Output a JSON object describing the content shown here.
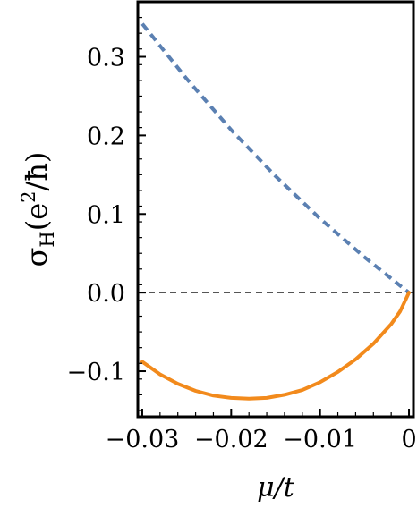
{
  "chart_data": {
    "type": "line",
    "title": "",
    "xlabel": "μ/t",
    "ylabel": "σH(e²/ħ)",
    "ylabel_parts": {
      "symbol": "σ",
      "subscript": "H",
      "open": "(e",
      "sup": "2",
      "tail": "/ħ)"
    },
    "xlim": [
      -0.0305,
      0.0005
    ],
    "ylim": [
      -0.158,
      0.37
    ],
    "x_ticks": [
      -0.03,
      -0.02,
      -0.01,
      0
    ],
    "x_tick_labels": [
      "−0.03",
      "−0.02",
      "−0.01",
      "0"
    ],
    "y_ticks": [
      -0.1,
      0.0,
      0.1,
      0.2,
      0.3
    ],
    "y_tick_labels": [
      "−0.1",
      "0.0",
      "0.1",
      "0.2",
      "0.3"
    ],
    "grid": false,
    "legend": "none",
    "reference_line": {
      "y": 0,
      "style": "dashed",
      "color": "#555555"
    },
    "series": [
      {
        "style": "dashed",
        "color": "#5b80b2",
        "x": [
          -0.03,
          -0.025,
          -0.02,
          -0.015,
          -0.01,
          -0.005,
          0
        ],
        "y": [
          0.342,
          0.272,
          0.207,
          0.148,
          0.094,
          0.045,
          0.0
        ]
      },
      {
        "style": "solid",
        "color": "#f28a1c",
        "x": [
          -0.03,
          -0.028,
          -0.026,
          -0.024,
          -0.022,
          -0.02,
          -0.018,
          -0.016,
          -0.014,
          -0.012,
          -0.01,
          -0.008,
          -0.006,
          -0.004,
          -0.002,
          -0.001,
          0
        ],
        "y": [
          -0.088,
          -0.104,
          -0.116,
          -0.125,
          -0.131,
          -0.134,
          -0.135,
          -0.134,
          -0.13,
          -0.124,
          -0.114,
          -0.101,
          -0.085,
          -0.065,
          -0.04,
          -0.024,
          0.0
        ]
      }
    ]
  }
}
